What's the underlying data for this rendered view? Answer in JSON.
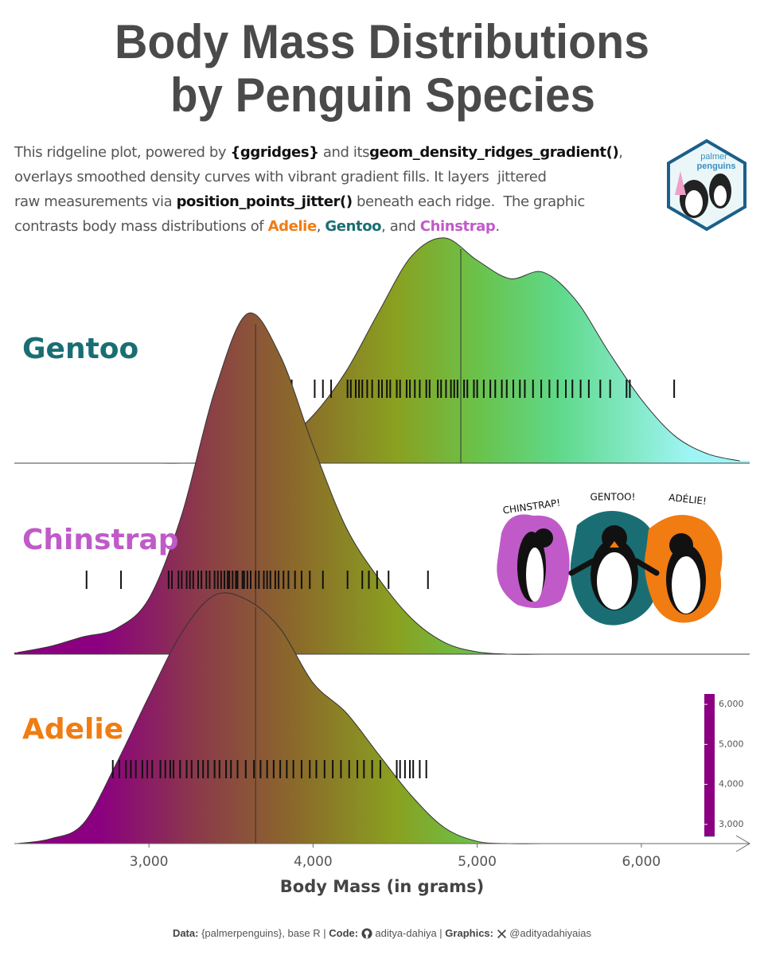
{
  "chart_data": {
    "type": "ridgeline",
    "title": [
      "Body Mass Distributions",
      "by Penguin Species"
    ],
    "subtitle": [
      [
        {
          "text": "This ridgeline plot, powered by "
        },
        {
          "text": "{ggridges}",
          "bold": true
        },
        {
          "text": " and its"
        },
        {
          "text": "geom_density_ridges_gradient()",
          "bold": true
        },
        {
          "text": ","
        }
      ],
      [
        {
          "text": "overlays smoothed density curves with vibrant gradient fills. It layers  jittered"
        }
      ],
      [
        {
          "text": "raw measurements via "
        },
        {
          "text": "position_points_jitter()",
          "bold": true
        },
        {
          "text": " beneath each ridge.  The graphic"
        }
      ],
      [
        {
          "text": "contrasts body mass distributions of "
        },
        {
          "text": "Adelie",
          "bold": true,
          "color": "#f07c12"
        },
        {
          "text": ", "
        },
        {
          "text": "Gentoo",
          "bold": true,
          "color": "#1a6e73"
        },
        {
          "text": ", and "
        },
        {
          "text": "Chinstrap",
          "bold": true,
          "color": "#c05ac9"
        },
        {
          "text": "."
        }
      ]
    ],
    "xlabel": "Body Mass (in grams)",
    "xlim": [
      2180,
      6660
    ],
    "xticks": [
      {
        "value": 3000,
        "label": "3,000"
      },
      {
        "value": 4000,
        "label": "4,000"
      },
      {
        "value": 5000,
        "label": "5,000"
      },
      {
        "value": 6000,
        "label": "6,000"
      }
    ],
    "density_x": [
      2200,
      2400,
      2600,
      2800,
      3000,
      3200,
      3400,
      3600,
      3800,
      4000,
      4200,
      4400,
      4600,
      4800,
      5000,
      5200,
      5400,
      5600,
      5800,
      6000,
      6200,
      6400,
      6600
    ],
    "gradient": [
      {
        "value": 2700,
        "color": "#8b0080"
      },
      {
        "value": 3300,
        "color": "#8b3a4a"
      },
      {
        "value": 3900,
        "color": "#8b6a2a"
      },
      {
        "value": 4500,
        "color": "#8aa020"
      },
      {
        "value": 5000,
        "color": "#6ac24a"
      },
      {
        "value": 5500,
        "color": "#5fd98a"
      },
      {
        "value": 6300,
        "color": "#9ff5f5"
      }
    ],
    "series": [
      {
        "name": "Gentoo",
        "color": "#1a6e73",
        "median": 4900,
        "density": [
          0,
          0,
          0,
          0,
          0,
          0,
          0.03,
          0.23,
          0.71,
          1.7,
          3.26,
          5.38,
          7.37,
          8.02,
          7.22,
          6.57,
          6.8,
          5.81,
          3.97,
          2.27,
          0.99,
          0.34,
          0.08
        ],
        "points": [
          3870,
          4010,
          4060,
          4110,
          4210,
          4230,
          4260,
          4280,
          4300,
          4330,
          4360,
          4400,
          4420,
          4450,
          4470,
          4510,
          4530,
          4570,
          4590,
          4620,
          4650,
          4690,
          4710,
          4760,
          4780,
          4810,
          4840,
          4860,
          4880,
          4920,
          4940,
          4980,
          5000,
          5040,
          5080,
          5110,
          5150,
          5180,
          5220,
          5260,
          5290,
          5340,
          5390,
          5440,
          5490,
          5540,
          5580,
          5630,
          5680,
          5750,
          5810,
          5910,
          5930,
          6200
        ]
      },
      {
        "name": "Chinstrap",
        "color": "#c05ac9",
        "median": 3650,
        "density": [
          0.06,
          0.28,
          0.62,
          0.91,
          1.98,
          4.96,
          9.35,
          12.12,
          10.62,
          7.42,
          4.53,
          2.69,
          1.27,
          0.42,
          0.08,
          0,
          0,
          0,
          0,
          0,
          0,
          0,
          0
        ],
        "points": [
          2620,
          2830,
          3120,
          3140,
          3180,
          3200,
          3230,
          3250,
          3270,
          3300,
          3320,
          3350,
          3370,
          3400,
          3420,
          3440,
          3460,
          3480,
          3490,
          3510,
          3530,
          3540,
          3570,
          3580,
          3600,
          3620,
          3650,
          3670,
          3700,
          3720,
          3740,
          3770,
          3790,
          3820,
          3850,
          3890,
          3930,
          3980,
          4060,
          4210,
          4300,
          4340,
          4390,
          4460,
          4700
        ]
      },
      {
        "name": "Adelie",
        "color": "#f07c12",
        "median": 3650,
        "density": [
          0,
          0.17,
          0.71,
          2.83,
          5.24,
          7.51,
          8.84,
          8.67,
          7.65,
          5.72,
          4.67,
          3.17,
          1.7,
          0.57,
          0.08,
          0,
          0,
          0,
          0,
          0,
          0,
          0,
          0
        ],
        "points": [
          2780,
          2820,
          2860,
          2890,
          2920,
          2960,
          2990,
          3020,
          3070,
          3100,
          3130,
          3150,
          3190,
          3230,
          3260,
          3300,
          3330,
          3360,
          3400,
          3430,
          3470,
          3500,
          3540,
          3590,
          3640,
          3680,
          3720,
          3760,
          3800,
          3840,
          3880,
          3930,
          3980,
          4020,
          4070,
          4120,
          4170,
          4220,
          4270,
          4310,
          4360,
          4410,
          4510,
          4530,
          4560,
          4590,
          4610,
          4650,
          4690
        ]
      }
    ],
    "colorbar": {
      "lim": [
        2680,
        6260
      ],
      "ticks": [
        {
          "value": 3000,
          "label": "3,000"
        },
        {
          "value": 4000,
          "label": "4,000"
        },
        {
          "value": 5000,
          "label": "5,000"
        },
        {
          "value": 6000,
          "label": "6,000"
        }
      ]
    },
    "illustration_labels": [
      "CHINSTRAP!",
      "GENTOO!",
      "ADÉLIE!"
    ],
    "logo": [
      "palmer",
      "penguins"
    ],
    "footer": [
      "Data:",
      " {palmerpenguins}, base R | ",
      "Code:",
      " aditya-dahiya | ",
      "Graphics:",
      " @adityadahiyaias"
    ]
  }
}
